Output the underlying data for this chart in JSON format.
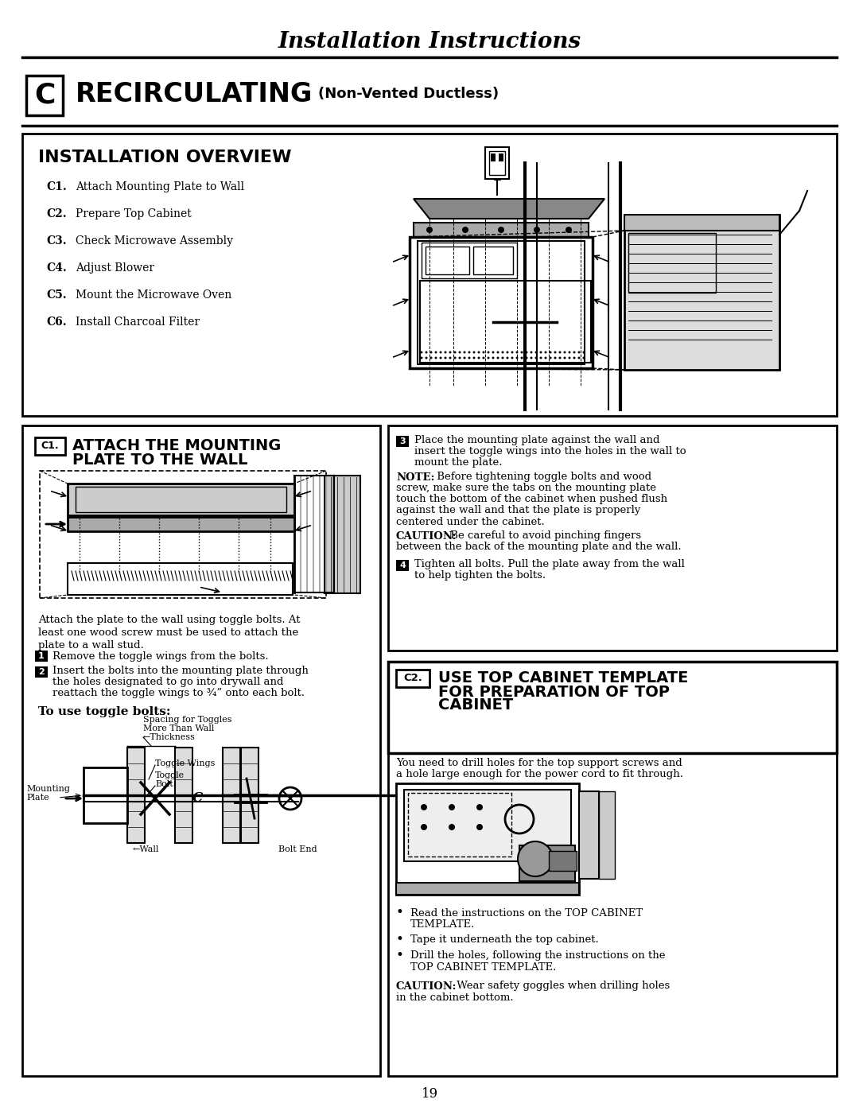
{
  "page_title": "Installation Instructions",
  "section_letter": "C",
  "section_title": "RECIRCULATING",
  "section_subtitle": "(Non-Vented Ductless)",
  "overview_title": "INSTALLATION OVERVIEW",
  "overview_steps": [
    [
      "C1.",
      "Attach Mounting Plate to Wall"
    ],
    [
      "C2.",
      "Prepare Top Cabinet"
    ],
    [
      "C3.",
      "Check Microwave Assembly"
    ],
    [
      "C4.",
      "Adjust Blower"
    ],
    [
      "C5.",
      "Mount the Microwave Oven"
    ],
    [
      "C6.",
      "Install Charcoal Filter"
    ]
  ],
  "c1_title_line1": "ATTACH THE MOUNTING",
  "c1_title_line2": "PLATE TO THE WALL",
  "c1_attach_text": "Attach the plate to the wall using toggle bolts. At\nleast one wood screw must be used to attach the\nplate to a wall stud.",
  "c1_step1": "Remove the toggle wings from the bolts.",
  "c1_step2a": "Insert the bolts into the mounting plate through",
  "c1_step2b": "the holes designated to go into drywall and",
  "c1_step2c": "reattach the toggle wings to ¾” onto each bolt.",
  "toggle_title": "To use toggle bolts:",
  "c1_step3a": "Place the mounting plate against the wall and",
  "c1_step3b": "insert the toggle wings into the holes in the wall to",
  "c1_step3c": "mount the plate.",
  "note_label": "NOTE:",
  "note_text1": " Before tightening toggle bolts and wood",
  "note_text2": "screw, make sure the tabs on the mounting plate",
  "note_text3": "touch the bottom of the cabinet when pushed flush",
  "note_text4": "against the wall and that the plate is properly",
  "note_text5": "centered under the cabinet.",
  "caution1_label": "CAUTION:",
  "caution1_text1": " Be careful to avoid pinching fingers",
  "caution1_text2": "between the back of the mounting plate and the wall.",
  "c1_step4a": "Tighten all bolts. Pull the plate away from the wall",
  "c1_step4b": "to help tighten the bolts.",
  "c2_label": "C2.",
  "c2_title_line1": "USE TOP CABINET TEMPLATE",
  "c2_title_line2": "FOR PREPARATION OF TOP",
  "c2_title_line3": "CABINET",
  "c2_intro1": "You need to drill holes for the top support screws and",
  "c2_intro2": "a hole large enough for the power cord to fit through.",
  "c2_bullet1a": "Read the instructions on the TOP CABINET",
  "c2_bullet1b": "TEMPLATE.",
  "c2_bullet2": "Tape it underneath the top cabinet.",
  "c2_bullet3a": "Drill the holes, following the instructions on the",
  "c2_bullet3b": "TOP CABINET TEMPLATE.",
  "caution2_label": "CAUTION:",
  "caution2_text1": " Wear safety goggles when drilling holes",
  "caution2_text2": "in the cabinet bottom.",
  "page_number": "19",
  "bg_color": "#ffffff",
  "text_color": "#000000"
}
